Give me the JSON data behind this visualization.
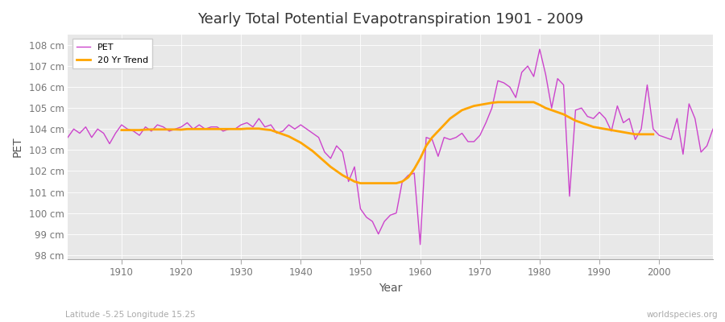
{
  "title": "Yearly Total Potential Evapotranspiration 1901 - 2009",
  "xlabel": "Year",
  "ylabel": "PET",
  "bottom_left_label": "Latitude -5.25 Longitude 15.25",
  "bottom_right_label": "worldspecies.org",
  "pet_color": "#cc44cc",
  "trend_color": "#ffa500",
  "bg_color": "#ffffff",
  "plot_bg_color": "#e8e8e8",
  "ylim": [
    97.8,
    108.5
  ],
  "yticks": [
    98,
    99,
    100,
    101,
    102,
    103,
    104,
    105,
    106,
    107,
    108
  ],
  "years": [
    1901,
    1902,
    1903,
    1904,
    1905,
    1906,
    1907,
    1908,
    1909,
    1910,
    1911,
    1912,
    1913,
    1914,
    1915,
    1916,
    1917,
    1918,
    1919,
    1920,
    1921,
    1922,
    1923,
    1924,
    1925,
    1926,
    1927,
    1928,
    1929,
    1930,
    1931,
    1932,
    1933,
    1934,
    1935,
    1936,
    1937,
    1938,
    1939,
    1940,
    1941,
    1942,
    1943,
    1944,
    1945,
    1946,
    1947,
    1948,
    1949,
    1950,
    1951,
    1952,
    1953,
    1954,
    1955,
    1956,
    1957,
    1958,
    1959,
    1960,
    1961,
    1962,
    1963,
    1964,
    1965,
    1966,
    1967,
    1968,
    1969,
    1970,
    1971,
    1972,
    1973,
    1974,
    1975,
    1976,
    1977,
    1978,
    1979,
    1980,
    1981,
    1982,
    1983,
    1984,
    1985,
    1986,
    1987,
    1988,
    1989,
    1990,
    1991,
    1992,
    1993,
    1994,
    1995,
    1996,
    1997,
    1998,
    1999,
    2000,
    2001,
    2002,
    2003,
    2004,
    2005,
    2006,
    2007,
    2008,
    2009
  ],
  "pet": [
    103.6,
    104.0,
    103.8,
    104.1,
    103.6,
    104.0,
    103.8,
    103.3,
    103.8,
    104.2,
    104.0,
    103.9,
    103.7,
    104.1,
    103.9,
    104.2,
    104.1,
    103.9,
    104.0,
    104.1,
    104.3,
    104.0,
    104.2,
    104.0,
    104.1,
    104.1,
    103.9,
    104.0,
    104.0,
    104.2,
    104.3,
    104.1,
    104.5,
    104.1,
    104.2,
    103.8,
    103.9,
    104.2,
    104.0,
    104.2,
    104.0,
    103.8,
    103.6,
    102.9,
    102.6,
    103.2,
    102.9,
    101.5,
    102.2,
    100.2,
    99.8,
    99.6,
    99.0,
    99.6,
    99.9,
    100.0,
    101.5,
    101.8,
    101.9,
    98.5,
    103.6,
    103.5,
    102.7,
    103.6,
    103.5,
    103.6,
    103.8,
    103.4,
    103.4,
    103.7,
    104.3,
    105.0,
    106.3,
    106.2,
    106.0,
    105.5,
    106.7,
    107.0,
    106.5,
    107.8,
    106.6,
    105.0,
    106.4,
    106.1,
    100.8,
    104.9,
    105.0,
    104.6,
    104.5,
    104.8,
    104.5,
    103.9,
    105.1,
    104.3,
    104.5,
    103.5,
    104.0,
    106.1,
    104.0,
    103.7,
    103.6,
    103.5,
    104.5,
    102.8,
    105.2,
    104.5,
    102.9,
    103.2,
    104.0
  ],
  "trend": [
    null,
    null,
    null,
    null,
    null,
    null,
    null,
    null,
    null,
    103.95,
    103.95,
    103.95,
    103.95,
    103.97,
    103.98,
    103.98,
    103.98,
    103.98,
    103.98,
    103.97,
    104.0,
    104.0,
    104.0,
    104.0,
    104.0,
    104.0,
    104.0,
    104.0,
    104.0,
    104.0,
    104.02,
    104.02,
    104.02,
    103.98,
    103.95,
    103.85,
    103.75,
    103.65,
    103.5,
    103.35,
    103.15,
    102.95,
    102.7,
    102.45,
    102.2,
    102.0,
    101.8,
    101.65,
    101.5,
    101.42,
    101.42,
    101.42,
    101.42,
    101.42,
    101.42,
    101.42,
    101.5,
    101.7,
    102.1,
    102.6,
    103.2,
    103.6,
    103.9,
    104.2,
    104.5,
    104.7,
    104.9,
    105.0,
    105.1,
    105.15,
    105.2,
    105.25,
    105.28,
    105.28,
    105.28,
    105.28,
    105.28,
    105.28,
    105.28,
    105.15,
    105.0,
    104.9,
    104.8,
    104.7,
    104.55,
    104.4,
    104.3,
    104.2,
    104.1,
    104.05,
    104.0,
    103.95,
    103.9,
    103.85,
    103.8,
    103.75,
    103.75,
    103.75,
    103.75,
    null,
    null,
    null,
    null,
    null,
    null,
    null,
    null,
    null,
    null
  ]
}
